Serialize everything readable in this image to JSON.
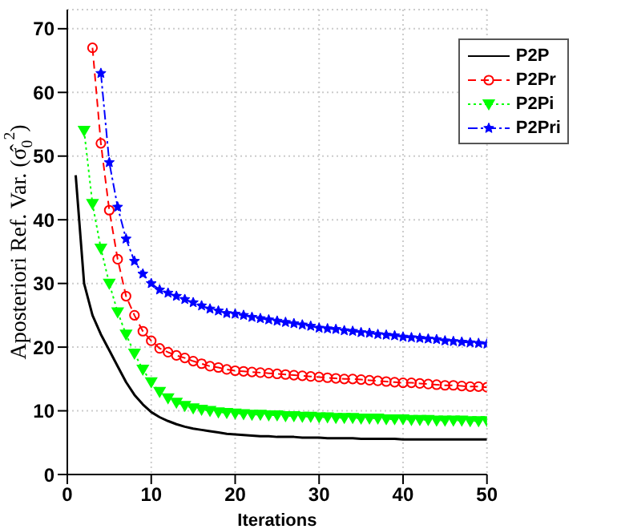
{
  "chart_data": {
    "type": "line",
    "xlabel": "Iterations",
    "ylabel": "Aposteriori Ref. Var. (σ̂$_{0}$$^{2}$)",
    "x": [
      1,
      2,
      3,
      4,
      5,
      6,
      7,
      8,
      9,
      10,
      11,
      12,
      13,
      14,
      15,
      16,
      17,
      18,
      19,
      20,
      21,
      22,
      23,
      24,
      25,
      26,
      27,
      28,
      29,
      30,
      31,
      32,
      33,
      34,
      35,
      36,
      37,
      38,
      39,
      40,
      41,
      42,
      43,
      44,
      45,
      46,
      47,
      48,
      49,
      50
    ],
    "xlim": [
      0,
      50
    ],
    "xticks": [
      0,
      10,
      20,
      30,
      40,
      50
    ],
    "ylim": [
      0,
      73
    ],
    "yticks": [
      0,
      10,
      20,
      30,
      40,
      50,
      60,
      70
    ],
    "grid": true,
    "legend": "top right",
    "series": [
      {
        "name": "P2P",
        "color": "#000000",
        "marker": "none",
        "line_style": "solid",
        "values": [
          47,
          30,
          25,
          22,
          19.5,
          17,
          14.5,
          12.5,
          11,
          9.8,
          9,
          8.4,
          7.9,
          7.5,
          7.2,
          7,
          6.8,
          6.6,
          6.4,
          6.3,
          6.2,
          6.1,
          6.0,
          6.0,
          5.9,
          5.9,
          5.9,
          5.8,
          5.8,
          5.8,
          5.7,
          5.7,
          5.7,
          5.7,
          5.6,
          5.6,
          5.6,
          5.6,
          5.6,
          5.5,
          5.5,
          5.5,
          5.5,
          5.5,
          5.5,
          5.5,
          5.5,
          5.5,
          5.5,
          5.5
        ]
      },
      {
        "name": "P2Pr",
        "color": "#ff0000",
        "marker": "circle",
        "line_style": "dashed",
        "values": [
          null,
          null,
          67,
          52,
          41.5,
          33.8,
          28,
          25,
          22.5,
          21,
          19.8,
          19.2,
          18.7,
          18.3,
          17.8,
          17.4,
          17,
          16.8,
          16.5,
          16.3,
          16.2,
          16.1,
          16.0,
          15.9,
          15.8,
          15.7,
          15.6,
          15.5,
          15.4,
          15.3,
          15.2,
          15.1,
          15.0,
          15.0,
          14.9,
          14.8,
          14.7,
          14.6,
          14.5,
          14.4,
          14.4,
          14.3,
          14.2,
          14.1,
          14.0,
          14.0,
          13.9,
          13.8,
          13.8,
          13.7
        ]
      },
      {
        "name": "P2Pi",
        "color": "#00ff00",
        "marker": "triangle",
        "line_style": "dotted",
        "values": [
          null,
          54,
          42.5,
          35.5,
          30,
          25.5,
          22,
          19,
          16.5,
          14.5,
          13,
          12,
          11.3,
          10.8,
          10.4,
          10.2,
          10,
          9.8,
          9.7,
          9.6,
          9.5,
          9.4,
          9.4,
          9.3,
          9.3,
          9.2,
          9.2,
          9.1,
          9.1,
          9.0,
          9.0,
          8.9,
          8.9,
          8.9,
          8.8,
          8.8,
          8.8,
          8.7,
          8.7,
          8.7,
          8.6,
          8.6,
          8.6,
          8.5,
          8.5,
          8.5,
          8.5,
          8.4,
          8.4,
          8.4
        ]
      },
      {
        "name": "P2Pri",
        "color": "#0000ff",
        "marker": "star",
        "line_style": "dashdot",
        "values": [
          null,
          null,
          null,
          63,
          49,
          42,
          37,
          33.5,
          31.5,
          30,
          29,
          28.5,
          28,
          27.5,
          27,
          26.5,
          26,
          25.7,
          25.3,
          25.2,
          25,
          24.7,
          24.5,
          24.3,
          24.1,
          23.9,
          23.7,
          23.5,
          23.3,
          23.0,
          22.9,
          22.8,
          22.6,
          22.5,
          22.3,
          22.2,
          22.0,
          21.9,
          21.8,
          21.6,
          21.5,
          21.4,
          21.3,
          21.2,
          21.0,
          20.9,
          20.8,
          20.7,
          20.6,
          20.5
        ]
      }
    ]
  }
}
